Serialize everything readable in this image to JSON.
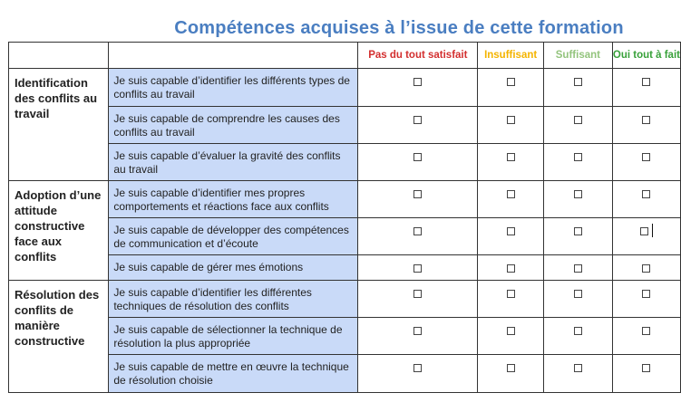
{
  "title": "Compétences acquises à l’issue de cette formation",
  "columns": [
    {
      "label": "Pas du tout satisfait",
      "color": "#d32f2f"
    },
    {
      "label": "Insuffisant",
      "color": "#f4b400"
    },
    {
      "label": "Suffisant",
      "color": "#93c47d"
    },
    {
      "label": "Oui tout à fait",
      "color": "#38a13a"
    }
  ],
  "categories": [
    {
      "name": "Identification des conflits au travail",
      "items": [
        "Je suis capable d’identifier les différents types de conflits au travail",
        "Je suis capable de comprendre les causes des conflits au travail",
        "Je suis capable d’évaluer la gravité des conflits au travail"
      ]
    },
    {
      "name": "Adoption d’une attitude constructive face aux conflits",
      "items": [
        "Je suis capable d’identifier mes propres comportements et réactions face aux conflits",
        "Je suis capable de développer des compétences de communication et d’écoute",
        "Je suis capable de gérer mes émotions"
      ]
    },
    {
      "name": "Résolution des conflits de manière constructive",
      "items": [
        "Je suis capable d’identifier les différentes techniques de résolution des conflits",
        "Je suis capable de sélectionner la technique de résolution la plus appropriée",
        "Je suis capable de mettre en œuvre la technique de résolution choisie"
      ]
    }
  ]
}
